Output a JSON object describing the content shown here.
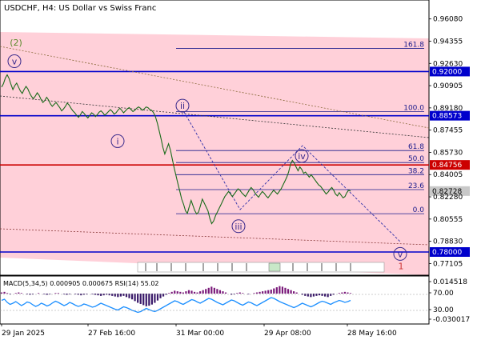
{
  "title": "USDCHF, H4:  US Dollar vs Swiss Franc",
  "chart_data": {
    "type": "line",
    "symbol": "USDCHF",
    "timeframe": "H4",
    "description_label": "US Dollar vs Swiss Franc",
    "ylim": [
      0.762,
      0.9755
    ],
    "price_ticks": [
      "0.96080",
      "0.94355",
      "0.92630",
      "0.90905",
      "0.89180",
      "0.87455",
      "0.85730",
      "0.84005",
      "0.82280",
      "0.80555",
      "0.78830",
      "0.77105"
    ],
    "price_tick_values": [
      0.9608,
      0.94355,
      0.9263,
      0.90905,
      0.8918,
      0.87455,
      0.8573,
      0.84005,
      0.8228,
      0.80555,
      0.7883,
      0.77105
    ],
    "current_price": "0.82728",
    "current_price_value": 0.82728,
    "horizontal_levels": [
      {
        "label": "0.92000",
        "value": 0.92,
        "color": "#0000cc"
      },
      {
        "label": "0.88573",
        "value": 0.88573,
        "color": "#0000cc"
      },
      {
        "label": "0.84756",
        "value": 0.84756,
        "color": "#cc0000"
      },
      {
        "label": "0.78000",
        "value": 0.78,
        "color": "#0000cc"
      }
    ],
    "fibonacci": [
      {
        "label": "161.8",
        "value": 0.938
      },
      {
        "label": "100.0",
        "value": 0.889
      },
      {
        "label": "61.8",
        "value": 0.8587
      },
      {
        "label": "50.0",
        "value": 0.8494
      },
      {
        "label": "38.2",
        "value": 0.84
      },
      {
        "label": "23.6",
        "value": 0.8284
      },
      {
        "label": "0.0",
        "value": 0.8097
      }
    ],
    "waves": [
      {
        "label": "(2)",
        "value": 0.9425,
        "color": "#5a8a2a"
      },
      {
        "label": "v",
        "value": 0.928,
        "color": "#3a2a8c",
        "circled": true
      },
      {
        "label": "ii",
        "value": 0.8935,
        "color": "#3a2a8c",
        "circled": true
      },
      {
        "label": "i",
        "value": 0.866,
        "color": "#3a2a8c",
        "circled": true
      },
      {
        "label": "iv",
        "value": 0.8545,
        "color": "#3a2a8c",
        "circled": true
      },
      {
        "label": "iii",
        "value": 0.8,
        "color": "#3a2a8c",
        "circled": true
      },
      {
        "label": "v",
        "value": 0.7785,
        "color": "#3a2a8c",
        "circled": true
      },
      {
        "label": "1",
        "value": 0.769,
        "color": "#cc3333"
      }
    ],
    "x_labels": [
      "29 Jan 2025",
      "27 Feb 16:00",
      "31 Mar 00:00",
      "29 Apr 08:00",
      "28 May 16:00"
    ],
    "series": [
      {
        "values": [
          0.908,
          0.9105,
          0.915,
          0.9175,
          0.9145,
          0.91,
          0.906,
          0.909,
          0.911,
          0.908,
          0.905,
          0.903,
          0.906,
          0.9085,
          0.9065,
          0.903,
          0.9005,
          0.899,
          0.901,
          0.9035,
          0.9015,
          0.8985,
          0.896,
          0.8975,
          0.9,
          0.898,
          0.895,
          0.893,
          0.8945,
          0.896,
          0.894,
          0.892,
          0.8895,
          0.891,
          0.893,
          0.8955,
          0.894,
          0.8915,
          0.8895,
          0.888,
          0.886,
          0.8845,
          0.8865,
          0.889,
          0.8875,
          0.8855,
          0.884,
          0.886,
          0.888,
          0.887,
          0.885,
          0.8865,
          0.8885,
          0.8895,
          0.888,
          0.886,
          0.8875,
          0.889,
          0.8905,
          0.889,
          0.887,
          0.888,
          0.89,
          0.8915,
          0.89,
          0.888,
          0.8895,
          0.891,
          0.892,
          0.8905,
          0.889,
          0.89,
          0.8915,
          0.8925,
          0.8915,
          0.89,
          0.891,
          0.8925,
          0.892,
          0.8905,
          0.89,
          0.888,
          0.885,
          0.88,
          0.874,
          0.868,
          0.861,
          0.856,
          0.86,
          0.864,
          0.859,
          0.852,
          0.845,
          0.839,
          0.833,
          0.827,
          0.821,
          0.817,
          0.812,
          0.81,
          0.815,
          0.82,
          0.816,
          0.812,
          0.8095,
          0.811,
          0.816,
          0.821,
          0.818,
          0.815,
          0.812,
          0.806,
          0.802,
          0.804,
          0.808,
          0.811,
          0.814,
          0.817,
          0.82,
          0.823,
          0.825,
          0.827,
          0.825,
          0.823,
          0.825,
          0.827,
          0.829,
          0.828,
          0.826,
          0.8245,
          0.823,
          0.8255,
          0.828,
          0.83,
          0.8285,
          0.826,
          0.824,
          0.8225,
          0.825,
          0.827,
          0.8255,
          0.8235,
          0.822,
          0.824,
          0.826,
          0.828,
          0.8265,
          0.825,
          0.827,
          0.829,
          0.832,
          0.835,
          0.838,
          0.842,
          0.848,
          0.851,
          0.849,
          0.846,
          0.843,
          0.846,
          0.844,
          0.841,
          0.842,
          0.84,
          0.838,
          0.84,
          0.838,
          0.836,
          0.834,
          0.832,
          0.831,
          0.829,
          0.827,
          0.825,
          0.8265,
          0.8285,
          0.83,
          0.828,
          0.825,
          0.8235,
          0.826,
          0.824,
          0.822,
          0.823,
          0.826,
          0.828,
          0.8272
        ]
      }
    ],
    "indicator": {
      "label": "MACD(5,34,5) 0.000905 0.000675 RSI(14) 55.02",
      "ticks": [
        "0.014518",
        "70.00",
        "30.00",
        "-0.030017"
      ],
      "tick_values": [
        0.014518,
        70.0,
        30.0,
        -0.030017
      ],
      "histogram": [
        0.002,
        0.003,
        0.001,
        -0.001,
        0.0,
        0.001,
        0.002,
        0.001,
        0.0,
        -0.001,
        -0.002,
        -0.001,
        0.0,
        0.001,
        0.0,
        -0.001,
        -0.002,
        -0.001,
        0.0,
        0.001,
        0.001,
        0.0,
        -0.001,
        -0.002,
        -0.001,
        0.0,
        -0.001,
        -0.002,
        -0.003,
        -0.002,
        -0.001,
        0.0,
        -0.001,
        -0.002,
        -0.003,
        -0.004,
        -0.003,
        -0.002,
        -0.003,
        -0.004,
        -0.005,
        -0.006,
        -0.005,
        -0.004,
        -0.006,
        -0.008,
        -0.01,
        -0.013,
        -0.016,
        -0.018,
        -0.02,
        -0.022,
        -0.021,
        -0.019,
        -0.016,
        -0.012,
        -0.008,
        -0.005,
        -0.002,
        0.001,
        0.003,
        0.005,
        0.004,
        0.003,
        0.002,
        0.004,
        0.006,
        0.005,
        0.003,
        0.002,
        0.004,
        0.006,
        0.008,
        0.01,
        0.012,
        0.01,
        0.008,
        0.006,
        0.004,
        0.002,
        0.0,
        -0.002,
        -0.001,
        0.001,
        0.002,
        0.001,
        0.0,
        -0.001,
        0.0,
        0.001,
        0.002,
        0.003,
        0.004,
        0.005,
        0.006,
        0.007,
        0.009,
        0.011,
        0.013,
        0.012,
        0.01,
        0.008,
        0.006,
        0.004,
        0.002,
        0.0,
        -0.002,
        -0.004,
        -0.005,
        -0.006,
        -0.005,
        -0.004,
        -0.003,
        -0.004,
        -0.005,
        -0.006,
        -0.004,
        -0.002,
        0.0,
        0.001,
        0.002,
        0.003,
        0.002,
        0.001
      ],
      "rsi": [
        55,
        58,
        50,
        45,
        48,
        52,
        47,
        42,
        46,
        51,
        49,
        44,
        40,
        43,
        48,
        45,
        41,
        44,
        49,
        53,
        50,
        46,
        42,
        45,
        50,
        47,
        43,
        40,
        42,
        46,
        44,
        41,
        38,
        40,
        44,
        48,
        45,
        42,
        39,
        36,
        33,
        31,
        35,
        39,
        37,
        34,
        30,
        28,
        25,
        27,
        31,
        35,
        32,
        29,
        27,
        30,
        34,
        38,
        42,
        46,
        50,
        54,
        52,
        48,
        45,
        49,
        53,
        57,
        55,
        51,
        48,
        52,
        56,
        60,
        58,
        54,
        50,
        47,
        44,
        48,
        52,
        56,
        54,
        50,
        46,
        43,
        47,
        51,
        49,
        45,
        42,
        46,
        50,
        54,
        58,
        62,
        60,
        56,
        52,
        49,
        46,
        43,
        40,
        37,
        40,
        44,
        48,
        45,
        42,
        39,
        42,
        46,
        50,
        53,
        51,
        48,
        45,
        49,
        52,
        55,
        53,
        50,
        52,
        55
      ]
    }
  }
}
